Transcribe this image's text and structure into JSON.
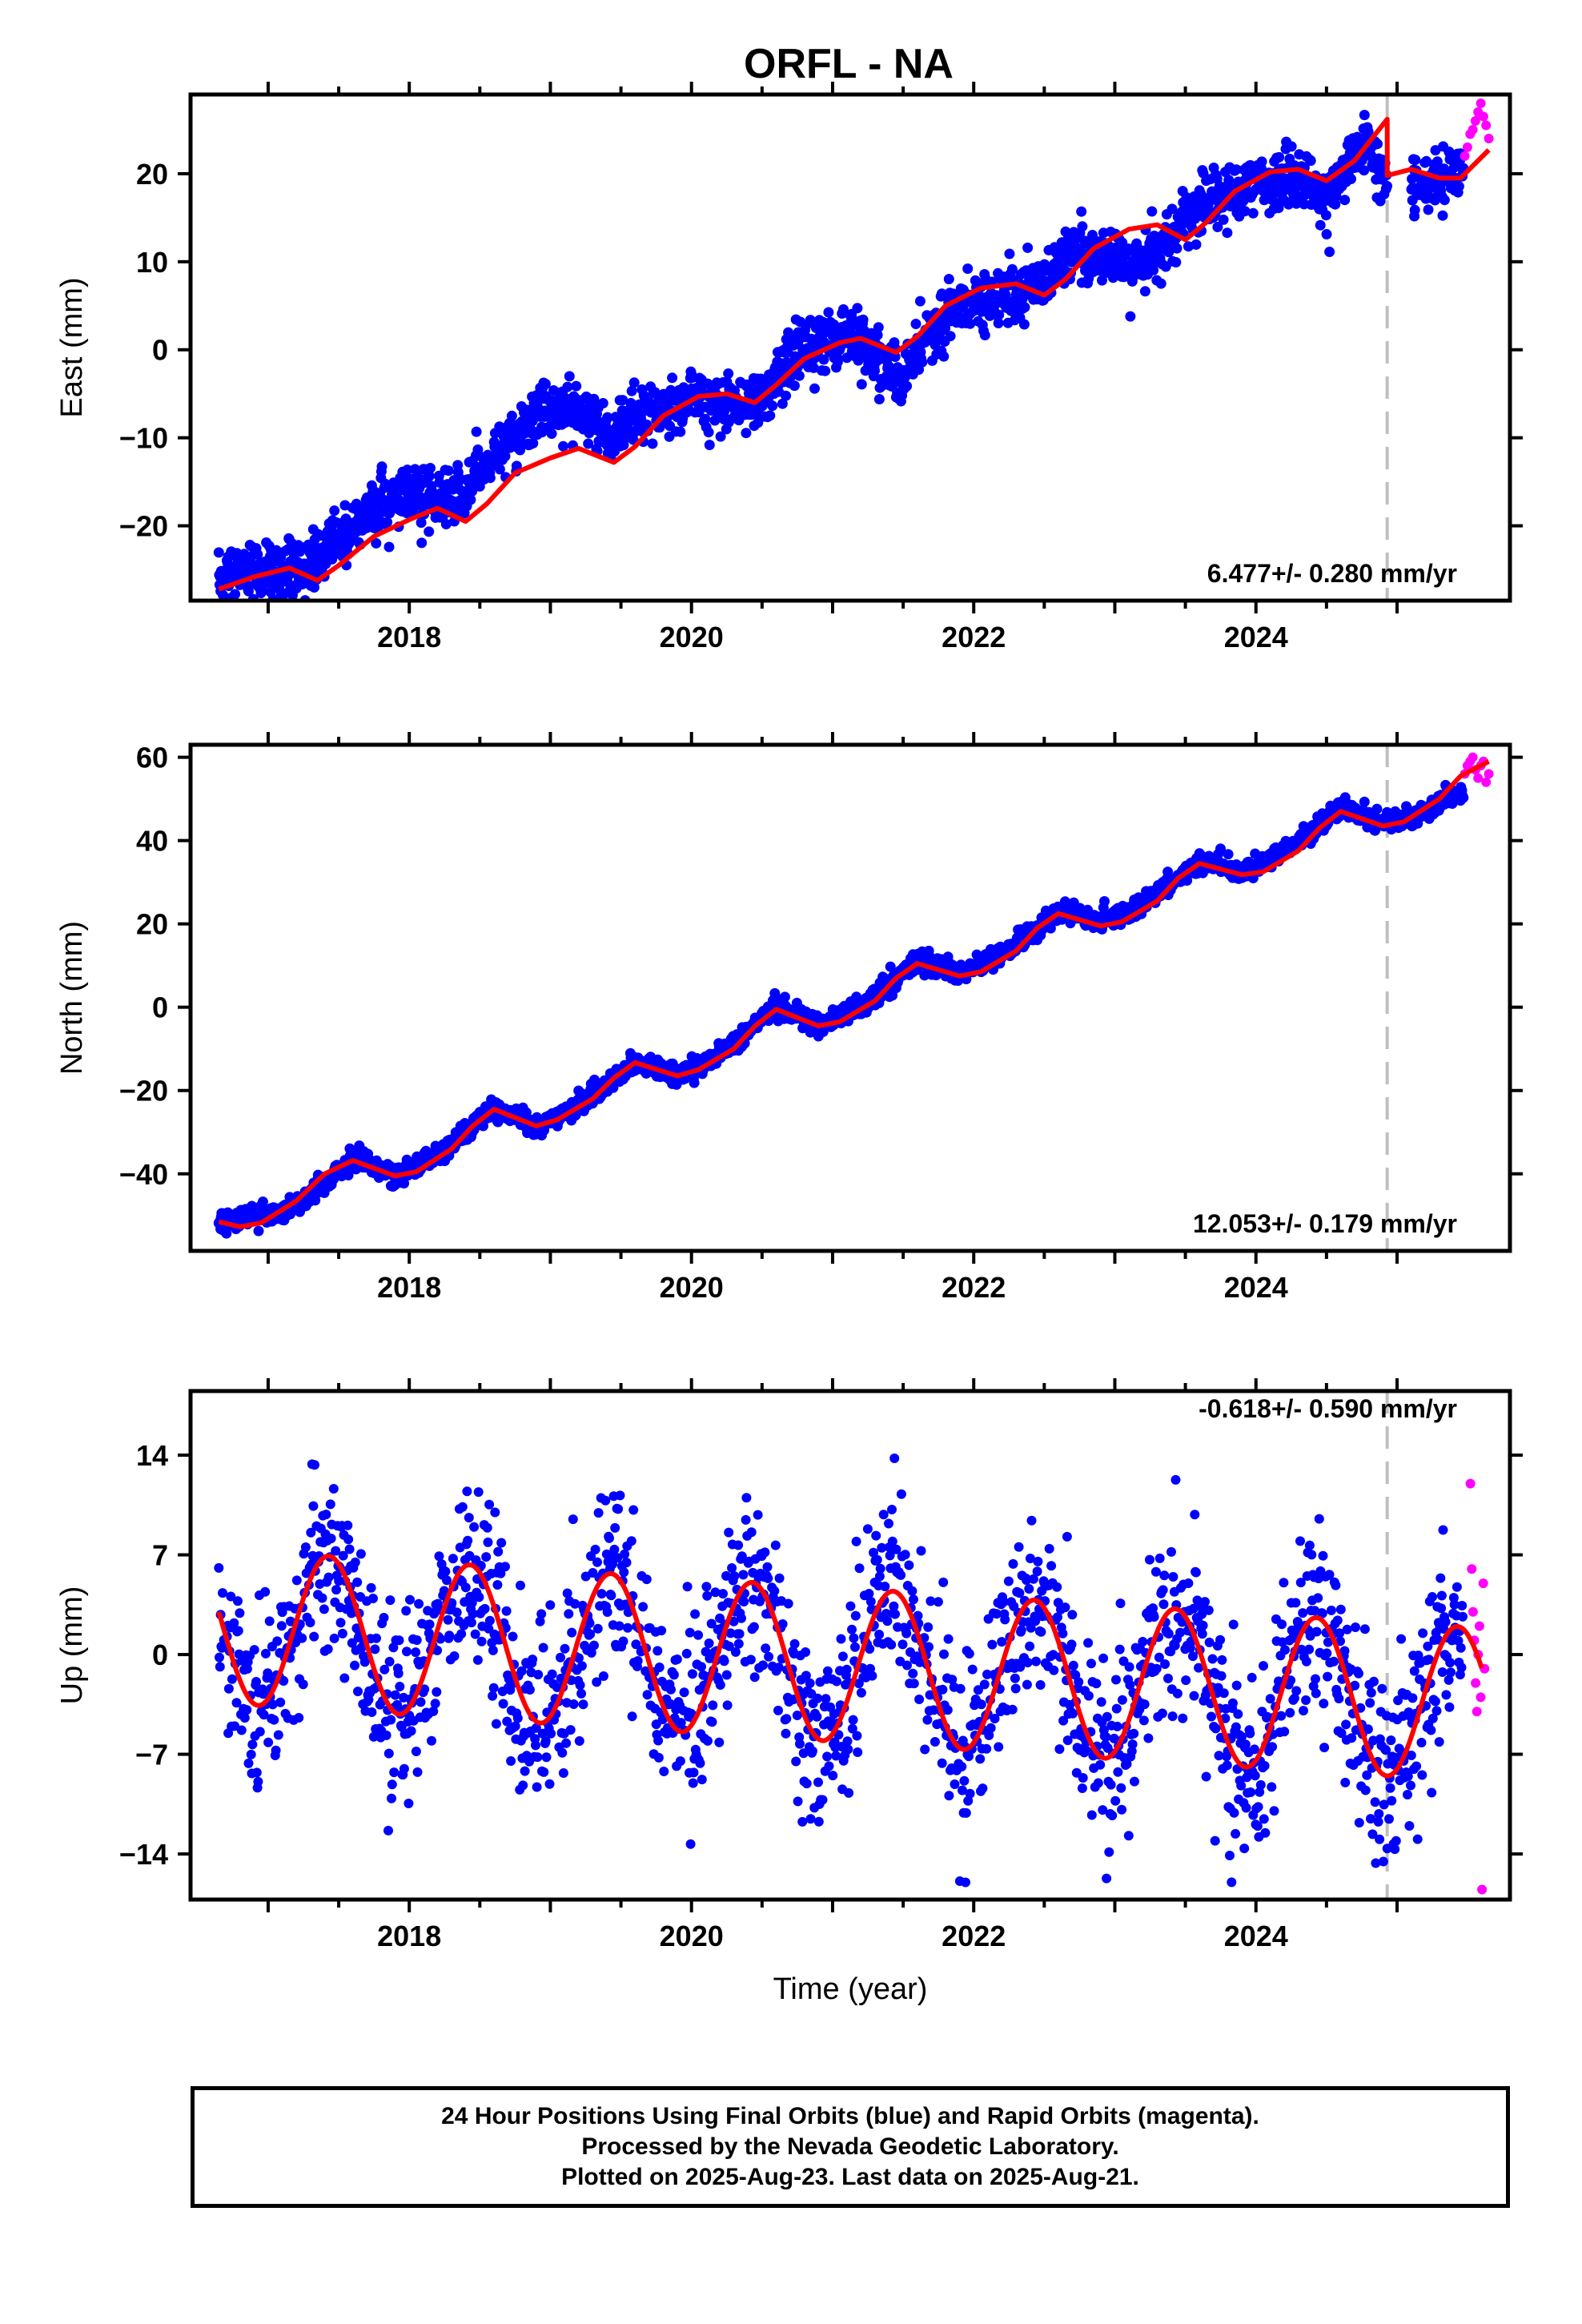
{
  "chart_data": [
    {
      "type": "scatter",
      "title": "ORFL - NA",
      "xlabel": "",
      "ylabel": "East (mm)",
      "xlim": [
        2016.45,
        2025.8
      ],
      "ylim": [
        -28.5,
        29
      ],
      "yticks": [
        -20,
        -10,
        0,
        10,
        20
      ],
      "xticks": [
        2018,
        2020,
        2022,
        2024
      ],
      "rate": "6.477+/- 0.280 mm/yr",
      "step_time": 2024.93,
      "final_orbits": {
        "start": 2016.65,
        "end": 2025.47,
        "gap": [
          2024.93,
          2025.1
        ],
        "trend": [
          [
            2016.65,
            -26.5
          ],
          [
            2017.2,
            -24.5
          ],
          [
            2018.0,
            -16.5
          ],
          [
            2018.4,
            -16
          ],
          [
            2018.95,
            -6.5
          ],
          [
            2019.3,
            -7
          ],
          [
            2019.4,
            -10
          ],
          [
            2020.0,
            -5.5
          ],
          [
            2020.5,
            -6
          ],
          [
            2020.7,
            -1.5
          ],
          [
            2021.0,
            2
          ],
          [
            2021.2,
            2
          ],
          [
            2021.4,
            -2
          ],
          [
            2021.5,
            -4
          ],
          [
            2021.6,
            0
          ],
          [
            2022.0,
            6
          ],
          [
            2022.3,
            7
          ],
          [
            2022.5,
            7.5
          ],
          [
            2022.7,
            10
          ],
          [
            2023.0,
            10.5
          ],
          [
            2023.3,
            11
          ],
          [
            2023.5,
            14.5
          ],
          [
            2024.0,
            19
          ],
          [
            2024.3,
            20
          ],
          [
            2024.5,
            17
          ],
          [
            2024.7,
            21
          ],
          [
            2024.8,
            23
          ],
          [
            2024.93,
            18
          ],
          [
            2025.1,
            19
          ],
          [
            2025.47,
            21
          ]
        ],
        "annual_amp": 1.5,
        "noise": 1.6
      },
      "rapid_orbits": {
        "start": 2025.48,
        "end": 2025.65,
        "values": [
          22,
          23,
          24.5,
          25,
          26,
          27,
          28,
          26.5,
          25.5,
          24
        ]
      },
      "model": [
        [
          2016.65,
          -27.2
        ],
        [
          2016.9,
          -25.8
        ],
        [
          2017.15,
          -24.8
        ],
        [
          2017.35,
          -26.2
        ],
        [
          2017.5,
          -24.5
        ],
        [
          2017.75,
          -21.2
        ],
        [
          2018.0,
          -19.3
        ],
        [
          2018.2,
          -18.0
        ],
        [
          2018.4,
          -19.5
        ],
        [
          2018.55,
          -17.5
        ],
        [
          2018.75,
          -14.0
        ],
        [
          2019.0,
          -12.3
        ],
        [
          2019.2,
          -11.2
        ],
        [
          2019.45,
          -12.8
        ],
        [
          2019.6,
          -11.0
        ],
        [
          2019.8,
          -7.5
        ],
        [
          2020.05,
          -5.3
        ],
        [
          2020.25,
          -5.0
        ],
        [
          2020.45,
          -6.0
        ],
        [
          2020.6,
          -4.0
        ],
        [
          2020.8,
          -1.0
        ],
        [
          2021.05,
          0.8
        ],
        [
          2021.2,
          1.3
        ],
        [
          2021.45,
          -0.3
        ],
        [
          2021.6,
          1.5
        ],
        [
          2021.8,
          5.0
        ],
        [
          2022.05,
          7.0
        ],
        [
          2022.3,
          7.5
        ],
        [
          2022.5,
          6.2
        ],
        [
          2022.65,
          8.0
        ],
        [
          2022.85,
          11.5
        ],
        [
          2023.1,
          13.7
        ],
        [
          2023.3,
          14.2
        ],
        [
          2023.5,
          12.5
        ],
        [
          2023.65,
          14.5
        ],
        [
          2023.85,
          18.0
        ],
        [
          2024.1,
          20.2
        ],
        [
          2024.3,
          20.5
        ],
        [
          2024.5,
          19.2
        ],
        [
          2024.7,
          21.5
        ],
        [
          2024.93,
          26.2
        ],
        [
          2024.931,
          19.8
        ],
        [
          2025.1,
          20.5
        ],
        [
          2025.3,
          19.5
        ],
        [
          2025.45,
          19.5
        ],
        [
          2025.65,
          22.7
        ]
      ]
    },
    {
      "type": "scatter",
      "xlabel": "",
      "ylabel": "North (mm)",
      "xlim": [
        2016.45,
        2025.8
      ],
      "ylim": [
        -58.5,
        63
      ],
      "yticks": [
        -40,
        -20,
        0,
        20,
        40,
        60
      ],
      "xticks": [
        2018,
        2020,
        2022,
        2024
      ],
      "rate": "12.053+/- 0.179 mm/yr",
      "step_time": 2024.93,
      "final_orbits": {
        "start": 2016.65,
        "end": 2025.47,
        "gap": [],
        "trend": [
          [
            2016.65,
            -53
          ],
          [
            2017.2,
            -47
          ],
          [
            2017.6,
            -37
          ],
          [
            2017.9,
            -41
          ],
          [
            2018.6,
            -25
          ],
          [
            2018.9,
            -29
          ],
          [
            2019.6,
            -14
          ],
          [
            2019.9,
            -17
          ],
          [
            2020.6,
            -1
          ],
          [
            2020.9,
            -5
          ],
          [
            2021.6,
            10
          ],
          [
            2021.9,
            8
          ],
          [
            2022.6,
            22
          ],
          [
            2022.9,
            20
          ],
          [
            2023.6,
            34
          ],
          [
            2023.9,
            32
          ],
          [
            2024.6,
            47
          ],
          [
            2024.9,
            44
          ],
          [
            2025.47,
            52
          ]
        ],
        "annual_amp": 2.5,
        "noise": 1.2
      },
      "rapid_orbits": {
        "start": 2025.48,
        "end": 2025.65,
        "values": [
          56,
          58,
          59,
          60,
          57,
          55,
          58,
          59,
          54,
          56
        ]
      },
      "model": [
        [
          2016.65,
          -51.5
        ],
        [
          2016.8,
          -52.7
        ],
        [
          2016.95,
          -51.8
        ],
        [
          2017.2,
          -46.5
        ],
        [
          2017.4,
          -40.0
        ],
        [
          2017.6,
          -36.8
        ],
        [
          2017.9,
          -40.5
        ],
        [
          2018.05,
          -39.5
        ],
        [
          2018.3,
          -34.0
        ],
        [
          2018.45,
          -28.5
        ],
        [
          2018.6,
          -24.5
        ],
        [
          2018.9,
          -28.5
        ],
        [
          2019.05,
          -27.0
        ],
        [
          2019.3,
          -22.0
        ],
        [
          2019.45,
          -17.0
        ],
        [
          2019.6,
          -13.3
        ],
        [
          2019.9,
          -16.5
        ],
        [
          2020.05,
          -15.0
        ],
        [
          2020.3,
          -10.0
        ],
        [
          2020.45,
          -4.5
        ],
        [
          2020.6,
          -0.5
        ],
        [
          2020.9,
          -4.5
        ],
        [
          2021.05,
          -3.5
        ],
        [
          2021.3,
          1.5
        ],
        [
          2021.45,
          7.0
        ],
        [
          2021.6,
          10.5
        ],
        [
          2021.9,
          7.5
        ],
        [
          2022.05,
          8.5
        ],
        [
          2022.3,
          13.5
        ],
        [
          2022.45,
          19.0
        ],
        [
          2022.6,
          22.5
        ],
        [
          2022.9,
          19.5
        ],
        [
          2023.05,
          20.5
        ],
        [
          2023.3,
          25.5
        ],
        [
          2023.45,
          31.0
        ],
        [
          2023.6,
          34.5
        ],
        [
          2023.9,
          31.8
        ],
        [
          2024.05,
          32.5
        ],
        [
          2024.3,
          37.5
        ],
        [
          2024.45,
          43.0
        ],
        [
          2024.6,
          47.0
        ],
        [
          2024.9,
          43.5
        ],
        [
          2025.05,
          44.5
        ],
        [
          2025.3,
          50.0
        ],
        [
          2025.45,
          55.5
        ],
        [
          2025.65,
          59.0
        ]
      ]
    },
    {
      "type": "scatter",
      "xlabel": "Time (year)",
      "ylabel": "Up (mm)",
      "xlim": [
        2016.45,
        2025.8
      ],
      "ylim": [
        -17.2,
        18.5
      ],
      "yticks": [
        -14,
        -7,
        0,
        7,
        14
      ],
      "xticks": [
        2018,
        2020,
        2022,
        2024
      ],
      "rate": "-0.618+/- 0.590 mm/yr",
      "step_time": 2024.93,
      "final_orbits": {
        "start": 2016.65,
        "end": 2025.47,
        "gap": [],
        "trend": [
          [
            2016.65,
            1.5
          ],
          [
            2025.47,
            -2.0
          ]
        ],
        "annual_amp": 5.5,
        "noise": 3.2
      },
      "rapid_orbits": {
        "start": 2025.52,
        "end": 2025.62,
        "values": [
          12,
          6,
          3,
          1,
          -2,
          -4,
          0,
          2,
          -3,
          -16.5,
          5,
          -1
        ]
      },
      "model": {
        "mean": 2.0,
        "slope": -0.618,
        "amp": 5.4,
        "phase_year": 2016.45,
        "start": 2016.65,
        "end": 2025.6
      }
    }
  ],
  "footer": {
    "line1": "24 Hour Positions Using Final Orbits (blue) and Rapid Orbits (magenta).",
    "line2": "Processed by the Nevada Geodetic Laboratory.",
    "line3": "Plotted on 2025-Aug-23. Last data on 2025-Aug-21."
  },
  "colors": {
    "final_orbits": "#0000ff",
    "rapid_orbits": "#ff00ff",
    "model": "#ff0000",
    "step_line": "#bfbfbf",
    "frame": "#000000"
  }
}
